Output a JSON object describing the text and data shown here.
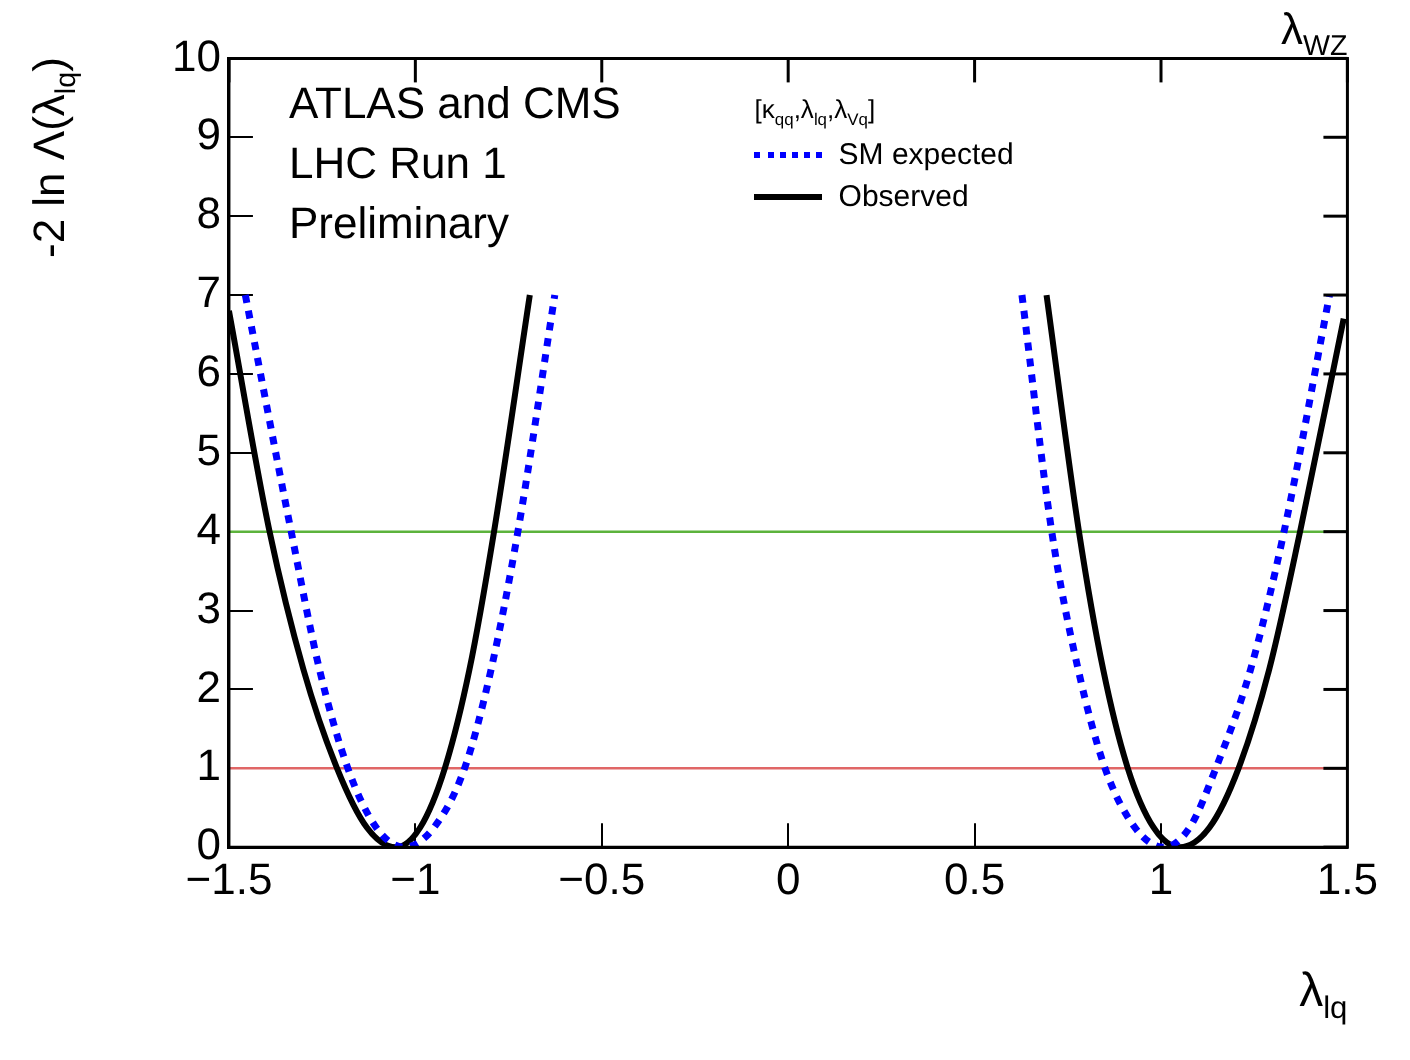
{
  "chart_data": {
    "type": "line",
    "xlabel": "λ$_{lq}$",
    "ylabel": "-2 ln Λ(λ$_{lq}$)",
    "legend_title": "[κ$_{qq}$,λ$_{lq}$,λ$_{Vq}$]",
    "legend": "top right",
    "grid": false,
    "marker": "none",
    "xlim": [
      -1.5,
      1.5
    ],
    "ylim": [
      0,
      10
    ],
    "xticks": [
      {
        "value": -1.5,
        "label": "−1.5"
      },
      {
        "value": -1,
        "label": "−1"
      },
      {
        "value": -0.5,
        "label": "−0.5"
      },
      0,
      0.5,
      1,
      1.5
    ],
    "yticks": [
      0,
      1,
      2,
      3,
      4,
      5,
      6,
      7,
      8,
      9,
      10
    ],
    "series": [
      {
        "name": "SM expected",
        "color": "#0000ff",
        "line_style": "dotted",
        "x": [
          -1.456,
          -1.333,
          -1.257,
          -1.181,
          -1.105,
          -1.03,
          -0.95,
          -0.868,
          -0.797,
          -0.725,
          -0.626,
          0,
          0.627,
          0.707,
          0.778,
          0.85,
          0.93,
          1.007,
          1.077,
          1.147,
          1.24,
          1.33,
          1.452
        ],
        "values": [
          7,
          4,
          2.25,
          1,
          0.25,
          0,
          0.25,
          1,
          2.25,
          4,
          7,
          null,
          7,
          4,
          2.25,
          1,
          0.25,
          0,
          0.25,
          1,
          2.25,
          4,
          7
        ]
      },
      {
        "name": "Observed",
        "color": "#000000",
        "line_style": "solid",
        "x": [
          -1.5,
          -1.391,
          -1.3,
          -1.21,
          -1.13,
          -1.053,
          -0.987,
          -0.921,
          -0.855,
          -0.789,
          -0.693,
          0,
          0.693,
          0.78,
          0.845,
          0.911,
          0.98,
          1.05,
          1.13,
          1.208,
          1.29,
          1.373,
          1.49
        ],
        "values": [
          6.8,
          4,
          2.25,
          1,
          0.25,
          0,
          0.25,
          1,
          2.25,
          4,
          7,
          null,
          7,
          4,
          2.25,
          1,
          0.25,
          0,
          0.25,
          1,
          2.25,
          4,
          6.7
        ]
      }
    ],
    "ref_lines": [
      {
        "axis": "y",
        "value": 1,
        "color": "#e06666"
      },
      {
        "axis": "y",
        "value": 4,
        "color": "#5cb33c"
      }
    ],
    "annotations": [
      "ATLAS and CMS",
      "LHC Run 1",
      "Preliminary",
      "λ$_{WZ}$"
    ]
  }
}
